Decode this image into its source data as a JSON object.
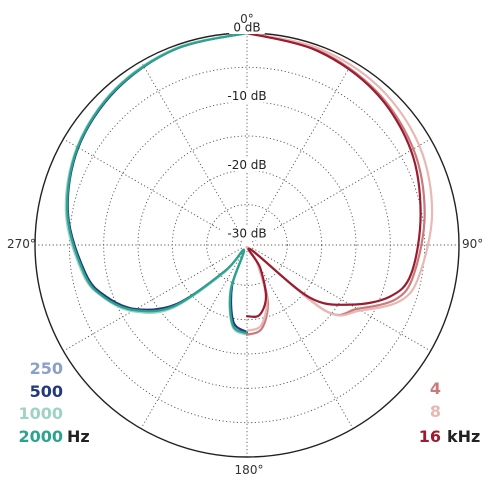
{
  "chart_data": {
    "type": "polar-line",
    "angle_labels": [
      "0°",
      "90°",
      "180°",
      "270°"
    ],
    "r_labels": [
      "0 dB",
      "-10 dB",
      "-20 dB",
      "-30 dB"
    ],
    "r_range_db": [
      -30,
      0
    ],
    "grid": "dotted",
    "theta_units": "degrees",
    "r_units": "dB",
    "left_legend": {
      "unit": "Hz",
      "entries": [
        {
          "label": "250",
          "color": "#8aa0c8"
        },
        {
          "label": "500",
          "color": "#233a7a"
        },
        {
          "label": "1000",
          "color": "#9ed3c4"
        },
        {
          "label": "2000",
          "color": "#2aa48f"
        }
      ]
    },
    "right_legend": {
      "unit": "kHz",
      "entries": [
        {
          "label": "4",
          "color": "#c97a7a"
        },
        {
          "label": "8",
          "color": "#e8b8b4"
        },
        {
          "label": "16",
          "color": "#9b1b30"
        }
      ]
    },
    "series": [
      {
        "name": "250",
        "color": "#8aa0c8",
        "side": "left",
        "points": [
          [
            0,
            0
          ],
          [
            20,
            -0.5
          ],
          [
            40,
            -1.2
          ],
          [
            60,
            -2.4
          ],
          [
            80,
            -4.3
          ],
          [
            100,
            -6.9
          ],
          [
            110,
            -8.8
          ],
          [
            120,
            -12
          ],
          [
            130,
            -17
          ],
          [
            140,
            -26
          ],
          [
            150,
            -30
          ],
          [
            160,
            -24
          ],
          [
            170,
            -19
          ],
          [
            180,
            -18
          ]
        ]
      },
      {
        "name": "500",
        "color": "#233a7a",
        "side": "left",
        "points": [
          [
            0,
            0
          ],
          [
            20,
            -0.5
          ],
          [
            40,
            -1.3
          ],
          [
            60,
            -2.5
          ],
          [
            80,
            -4.4
          ],
          [
            100,
            -7.0
          ],
          [
            110,
            -9.0
          ],
          [
            120,
            -12.2
          ],
          [
            130,
            -17.5
          ],
          [
            140,
            -26
          ],
          [
            150,
            -30
          ],
          [
            160,
            -24.5
          ],
          [
            170,
            -19.5
          ],
          [
            180,
            -18.2
          ]
        ]
      },
      {
        "name": "1000",
        "color": "#9ed3c4",
        "side": "left",
        "points": [
          [
            0,
            0
          ],
          [
            20,
            -0.4
          ],
          [
            40,
            -1.1
          ],
          [
            60,
            -2.3
          ],
          [
            80,
            -4.1
          ],
          [
            100,
            -6.6
          ],
          [
            110,
            -8.6
          ],
          [
            120,
            -11.6
          ],
          [
            130,
            -16.5
          ],
          [
            140,
            -25.5
          ],
          [
            150,
            -30
          ],
          [
            160,
            -23.8
          ],
          [
            170,
            -18.8
          ],
          [
            180,
            -17.8
          ]
        ]
      },
      {
        "name": "2000",
        "color": "#2aa48f",
        "side": "left",
        "points": [
          [
            0,
            0
          ],
          [
            20,
            -0.5
          ],
          [
            40,
            -1.2
          ],
          [
            60,
            -2.4
          ],
          [
            80,
            -4.3
          ],
          [
            100,
            -6.8
          ],
          [
            110,
            -8.7
          ],
          [
            120,
            -11.9
          ],
          [
            130,
            -17
          ],
          [
            140,
            -26
          ],
          [
            150,
            -30
          ],
          [
            160,
            -24
          ],
          [
            170,
            -19
          ],
          [
            180,
            -18
          ]
        ]
      },
      {
        "name": "4",
        "color": "#c97a7a",
        "side": "right",
        "points": [
          [
            0,
            0
          ],
          [
            20,
            -0.7
          ],
          [
            40,
            -1.6
          ],
          [
            60,
            -2.9
          ],
          [
            80,
            -4.6
          ],
          [
            100,
            -6.2
          ],
          [
            110,
            -7.8
          ],
          [
            120,
            -12.3
          ],
          [
            130,
            -16
          ],
          [
            140,
            -30
          ],
          [
            150,
            -27.5
          ],
          [
            160,
            -22
          ],
          [
            170,
            -18.5
          ],
          [
            180,
            -17.8
          ]
        ]
      },
      {
        "name": "8",
        "color": "#e8b8b4",
        "side": "right",
        "points": [
          [
            0,
            0
          ],
          [
            20,
            -0.4
          ],
          [
            40,
            -0.9
          ],
          [
            60,
            -1.9
          ],
          [
            80,
            -3.5
          ],
          [
            100,
            -5.4
          ],
          [
            110,
            -7.1
          ],
          [
            120,
            -11.8
          ],
          [
            130,
            -16
          ],
          [
            140,
            -30
          ],
          [
            150,
            -28
          ],
          [
            160,
            -22.5
          ],
          [
            170,
            -19
          ],
          [
            180,
            -18.4
          ]
        ]
      },
      {
        "name": "16",
        "color": "#9b1b30",
        "side": "right",
        "points": [
          [
            0,
            0
          ],
          [
            20,
            -0.8
          ],
          [
            40,
            -1.8
          ],
          [
            60,
            -3.3
          ],
          [
            80,
            -5.2
          ],
          [
            100,
            -6.6
          ],
          [
            110,
            -8.8
          ],
          [
            120,
            -13.5
          ],
          [
            130,
            -19
          ],
          [
            140,
            -30
          ],
          [
            150,
            -27
          ],
          [
            160,
            -22.8
          ],
          [
            170,
            -20.5
          ],
          [
            180,
            -20.5
          ]
        ]
      }
    ]
  }
}
